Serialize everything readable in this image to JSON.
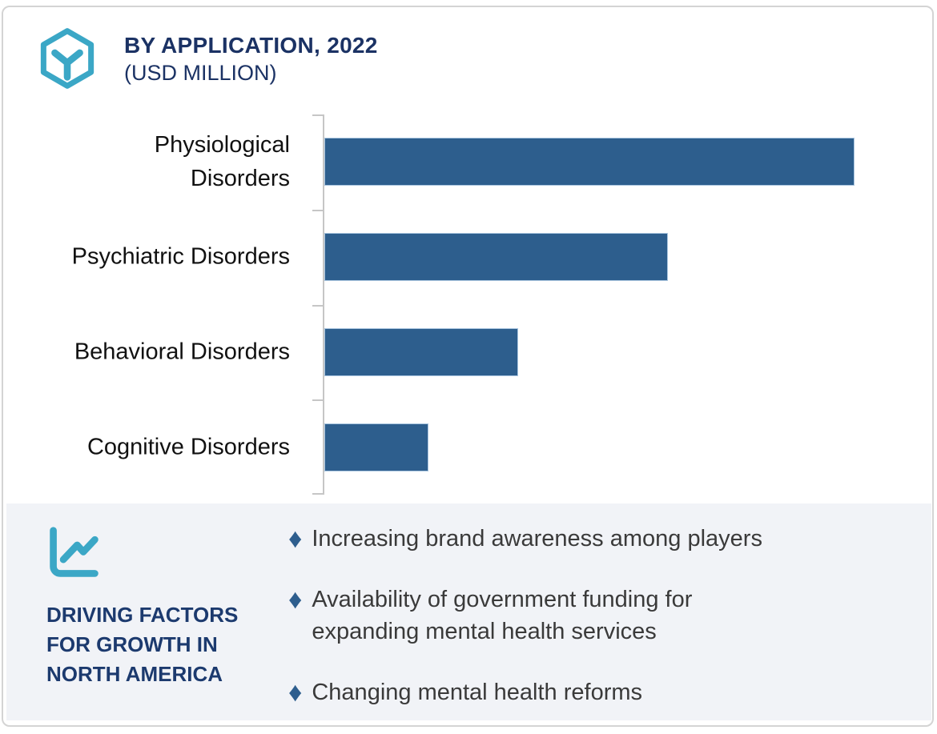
{
  "header": {
    "title": "BY APPLICATION, 2022",
    "subtitle": "(USD MILLION)",
    "logo_icon": "hexagon-y-logo-icon"
  },
  "chart_data": {
    "type": "bar",
    "orientation": "horizontal",
    "title": "BY APPLICATION, 2022 (USD MILLION)",
    "unit": "USD Million",
    "categories": [
      "Physiological Disorders",
      "Psychiatric Disorders",
      "Behavioral Disorders",
      "Cognitive Disorders"
    ],
    "category_label_lines": [
      [
        "Physiological",
        "Disorders"
      ],
      [
        "Psychiatric Disorders"
      ],
      [
        "Behavioral Disorders"
      ],
      [
        "Cognitive Disorders"
      ]
    ],
    "values_relative_pct": [
      100,
      64.8,
      36.6,
      19.6
    ],
    "value_axis_labels_visible": false,
    "data_labels_visible": false,
    "grid": false,
    "legend": false,
    "bar_color": "#2d5e8d",
    "bar_border_color": "#a9c5df",
    "axis_color": "#c6c6c6"
  },
  "driving_factors": {
    "heading": "DRIVING FACTORS FOR GROWTH IN NORTH AMERICA",
    "icon": "line-chart-icon",
    "bullet_marker": "diamond",
    "bullet_marker_char": "♦",
    "bullet_color": "#2e5e8e",
    "panel_bg": "#f1f3f7",
    "bullets": [
      "Increasing brand awareness among players",
      "Availability of government funding for\nexpanding mental health services",
      "Changing mental health reforms"
    ]
  },
  "colors": {
    "accent_teal": "#3ba7c6",
    "navy": "#1b3264",
    "text_dark": "#3a3a3a",
    "card_border": "#d4d4d4"
  }
}
